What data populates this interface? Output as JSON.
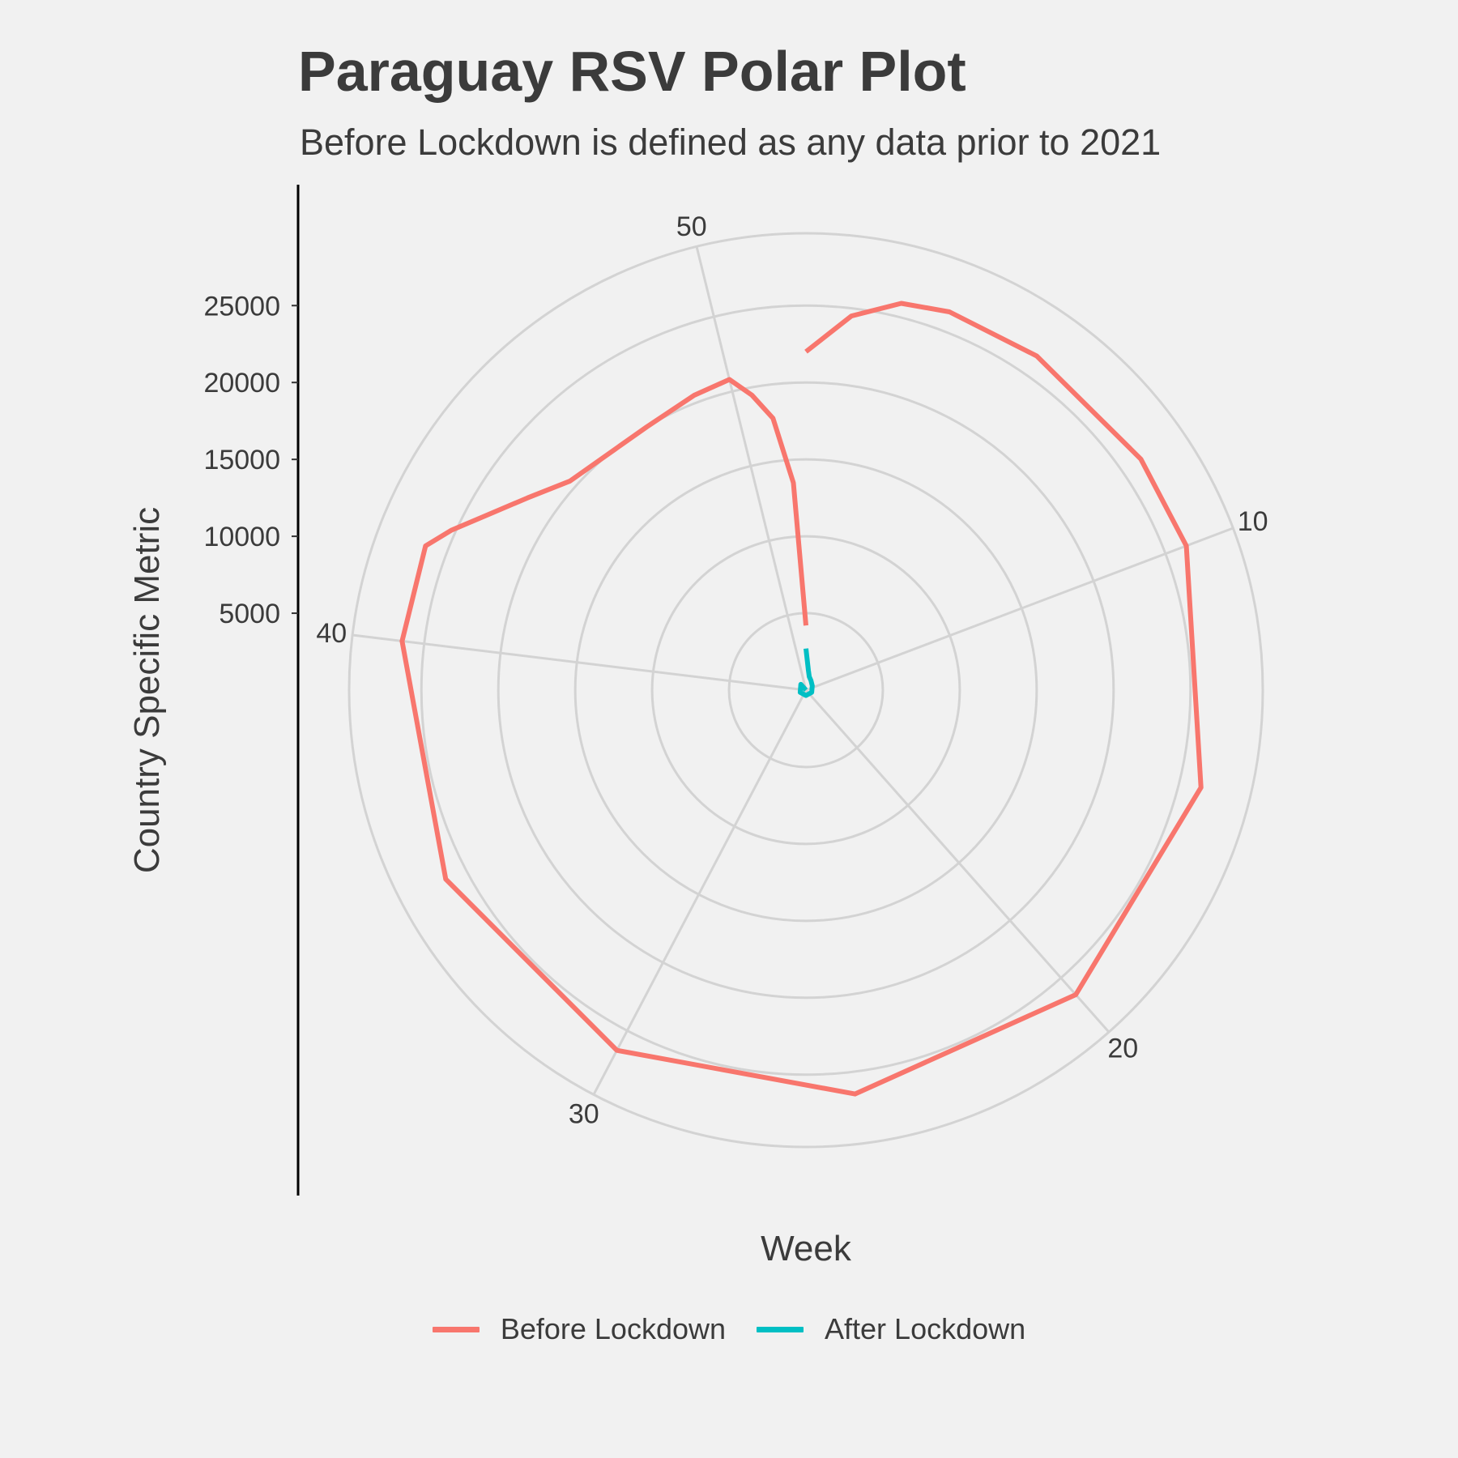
{
  "chart_data": {
    "type": "line",
    "coordinate_system": "polar",
    "title": "Paraguay RSV Polar Plot",
    "subtitle": "Before Lockdown is defined as any data prior to 2021",
    "xlabel": "Week",
    "ylabel": "Country Specific Metric",
    "theta_ticks": [
      10,
      20,
      30,
      40,
      50
    ],
    "theta_range": [
      0,
      52
    ],
    "y_ticks": [
      5000,
      10000,
      15000,
      20000,
      25000
    ],
    "y_tick_labels": [
      "5000",
      "10000",
      "15000",
      "20000",
      "25000"
    ],
    "ylim": [
      0,
      29700
    ],
    "grid": true,
    "legend_position": "bottom",
    "series": [
      {
        "name": "Before Lockdown",
        "color": "#f8766d",
        "points": [
          [
            0,
            22000
          ],
          [
            1,
            24500
          ],
          [
            2,
            25900
          ],
          [
            3,
            26300
          ],
          [
            5,
            26400
          ],
          [
            8,
            26450
          ],
          [
            10,
            26450
          ],
          [
            15,
            26450
          ],
          [
            20,
            26450
          ],
          [
            25,
            26450
          ],
          [
            30,
            26450
          ],
          [
            35,
            26450
          ],
          [
            40,
            26450
          ],
          [
            42,
            26450
          ],
          [
            42.5,
            25300
          ],
          [
            44,
            22000
          ],
          [
            45,
            20500
          ],
          [
            47.5,
            20000
          ],
          [
            49,
            20500
          ],
          [
            50,
            20800
          ],
          [
            50.5,
            19500
          ],
          [
            51,
            17800
          ],
          [
            51.5,
            13500
          ],
          [
            52,
            4200
          ]
        ]
      },
      {
        "name": "After Lockdown",
        "color": "#00bfc4",
        "points": [
          [
            0,
            2700
          ],
          [
            1,
            1300
          ],
          [
            2,
            900
          ],
          [
            4,
            700
          ],
          [
            8,
            500
          ],
          [
            16,
            400
          ],
          [
            26,
            350
          ],
          [
            36,
            400
          ],
          [
            46,
            500
          ],
          [
            52,
            0
          ]
        ]
      }
    ]
  }
}
